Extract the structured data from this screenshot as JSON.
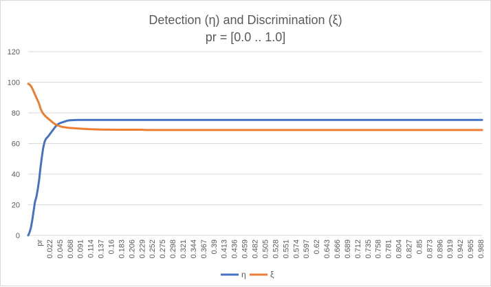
{
  "chart_data": {
    "type": "line",
    "title": "Detection (η) and Discrimination (ξ)",
    "subtitle": "pr = [0.0 .. 1.0]",
    "xlabel": "",
    "ylabel": "",
    "ylim": [
      0,
      120
    ],
    "yticks": [
      0,
      20,
      40,
      60,
      80,
      100,
      120
    ],
    "xlim": [
      0,
      1
    ],
    "xtick_labels": [
      "pr",
      "0.022",
      "0.045",
      "0.068",
      "0.091",
      "0.114",
      "0.137",
      "0.16",
      "0.183",
      "0.206",
      "0.229",
      "0.252",
      "0.275",
      "0.298",
      "0.321",
      "0.344",
      "0.367",
      "0.39",
      "0.413",
      "0.436",
      "0.459",
      "0.482",
      "0.505",
      "0.528",
      "0.551",
      "0.574",
      "0.597",
      "0.62",
      "0.643",
      "0.666",
      "0.689",
      "0.712",
      "0.735",
      "0.758",
      "0.781",
      "0.804",
      "0.827",
      "0.85",
      "0.873",
      "0.896",
      "0.919",
      "0.942",
      "0.965",
      "0.988"
    ],
    "grid": true,
    "legend_position": "bottom",
    "series": [
      {
        "name": "η",
        "color": "#4472c4",
        "x": [
          0,
          0.003,
          0.006,
          0.009,
          0.012,
          0.015,
          0.018,
          0.021,
          0.024,
          0.027,
          0.03,
          0.033,
          0.036,
          0.039,
          0.042,
          0.045,
          0.05,
          0.055,
          0.06,
          0.065,
          0.07,
          0.075,
          0.08,
          0.085,
          0.09,
          0.1,
          0.11,
          0.12,
          0.15,
          0.2,
          0.3,
          0.5,
          0.7,
          0.9,
          1.0
        ],
        "y": [
          0,
          2,
          5,
          10,
          16,
          22,
          25,
          30,
          36,
          44,
          51,
          57,
          61,
          63,
          64,
          65,
          67,
          69,
          71,
          72.5,
          73.3,
          73.8,
          74.3,
          74.8,
          75.1,
          75.3,
          75.4,
          75.4,
          75.4,
          75.4,
          75.4,
          75.4,
          75.4,
          75.4,
          75.4
        ]
      },
      {
        "name": "ξ",
        "color": "#ed7d31",
        "x": [
          0,
          0.003,
          0.006,
          0.009,
          0.012,
          0.015,
          0.018,
          0.021,
          0.024,
          0.027,
          0.03,
          0.033,
          0.036,
          0.039,
          0.042,
          0.045,
          0.05,
          0.055,
          0.06,
          0.065,
          0.07,
          0.075,
          0.08,
          0.085,
          0.09,
          0.1,
          0.11,
          0.12,
          0.137,
          0.16,
          0.2,
          0.25,
          0.26,
          0.3,
          0.5,
          0.7,
          0.9,
          1.0
        ],
        "y": [
          99,
          98.5,
          97.5,
          96,
          94,
          92,
          90,
          88,
          86,
          83,
          81,
          79.5,
          78.5,
          77.5,
          76.8,
          76,
          74.8,
          73.5,
          72.5,
          71.8,
          71.3,
          70.8,
          70.6,
          70.4,
          70.2,
          70,
          69.8,
          69.6,
          69.3,
          69.1,
          69,
          69,
          68.8,
          68.8,
          68.8,
          68.8,
          68.8,
          68.8
        ]
      }
    ]
  }
}
